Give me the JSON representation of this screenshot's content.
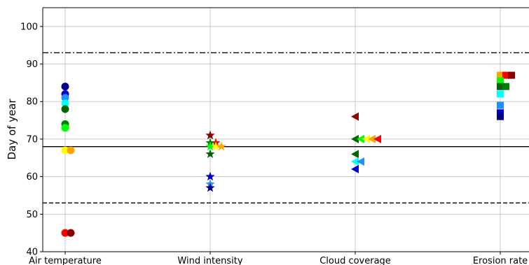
{
  "chart_data": {
    "type": "scatter",
    "title": "",
    "xlabel": "",
    "ylabel": "Day of year",
    "categories": [
      "Air temperature",
      "Wind intensity",
      "Cloud coverage",
      "Erosion rate"
    ],
    "yticks": [
      40,
      50,
      60,
      70,
      80,
      90,
      100
    ],
    "ylim": [
      40,
      105
    ],
    "grid": true,
    "reference_lines": [
      {
        "value": 93,
        "style": "dashdot"
      },
      {
        "value": 68,
        "style": "solid"
      },
      {
        "value": 53,
        "style": "dashed"
      }
    ],
    "series": [
      {
        "category": "Air temperature",
        "marker": "circle",
        "points": [
          {
            "offset": 0,
            "y": 84,
            "color": "#00008b"
          },
          {
            "offset": 0,
            "y": 82,
            "color": "#0000cd"
          },
          {
            "offset": 0,
            "y": 81,
            "color": "#1e90ff"
          },
          {
            "offset": 0,
            "y": 79.5,
            "color": "#00ffff"
          },
          {
            "offset": 0,
            "y": 78,
            "color": "#006400"
          },
          {
            "offset": 0,
            "y": 74,
            "color": "#008000"
          },
          {
            "offset": 0,
            "y": 73,
            "color": "#00ff00"
          },
          {
            "offset": 0,
            "y": 67,
            "color": "#ffff00"
          },
          {
            "offset": 1,
            "y": 67,
            "color": "#ffa500"
          },
          {
            "offset": 0,
            "y": 45,
            "color": "#ff0000"
          },
          {
            "offset": 1,
            "y": 45,
            "color": "#8b0000"
          }
        ]
      },
      {
        "category": "Wind intensity",
        "marker": "star",
        "points": [
          {
            "offset": 0,
            "y": 71,
            "color": "#8b0000"
          },
          {
            "offset": 1,
            "y": 69,
            "color": "#ff0000"
          },
          {
            "offset": 0,
            "y": 69,
            "color": "#008000"
          },
          {
            "offset": 0,
            "y": 68,
            "color": "#00ff00"
          },
          {
            "offset": 1,
            "y": 68,
            "color": "#ffff00"
          },
          {
            "offset": 2,
            "y": 68,
            "color": "#ffa500"
          },
          {
            "offset": 0,
            "y": 66,
            "color": "#006400"
          },
          {
            "offset": 0,
            "y": 60,
            "color": "#0000cd"
          },
          {
            "offset": 0,
            "y": 58,
            "color": "#1e90ff"
          },
          {
            "offset": 0,
            "y": 57,
            "color": "#00008b"
          }
        ]
      },
      {
        "category": "Cloud coverage",
        "marker": "triangle-left",
        "points": [
          {
            "offset": 0,
            "y": 76,
            "color": "#8b0000"
          },
          {
            "offset": 0,
            "y": 70,
            "color": "#006400"
          },
          {
            "offset": 1,
            "y": 70,
            "color": "#00ff00"
          },
          {
            "offset": 2,
            "y": 70,
            "color": "#ffff00"
          },
          {
            "offset": 3,
            "y": 70,
            "color": "#ffa500"
          },
          {
            "offset": 4,
            "y": 70,
            "color": "#ff0000"
          },
          {
            "offset": 0,
            "y": 66,
            "color": "#006400"
          },
          {
            "offset": 0,
            "y": 64,
            "color": "#00ffff"
          },
          {
            "offset": 1,
            "y": 64,
            "color": "#1e90ff"
          },
          {
            "offset": 0,
            "y": 62,
            "color": "#0000cd"
          }
        ]
      },
      {
        "category": "Erosion rate",
        "marker": "square",
        "points": [
          {
            "offset": 0,
            "y": 87,
            "color": "#ffa500"
          },
          {
            "offset": 1,
            "y": 87,
            "color": "#ff0000"
          },
          {
            "offset": 2,
            "y": 87,
            "color": "#8b0000"
          },
          {
            "offset": 0,
            "y": 85.5,
            "color": "#00ff00"
          },
          {
            "offset": 0,
            "y": 84,
            "color": "#006400"
          },
          {
            "offset": 1,
            "y": 84,
            "color": "#008000"
          },
          {
            "offset": 0,
            "y": 82,
            "color": "#00ffff"
          },
          {
            "offset": 0,
            "y": 79,
            "color": "#1e90ff"
          },
          {
            "offset": 0,
            "y": 77,
            "color": "#0000cd"
          },
          {
            "offset": 0,
            "y": 76,
            "color": "#00008b"
          }
        ]
      }
    ]
  }
}
